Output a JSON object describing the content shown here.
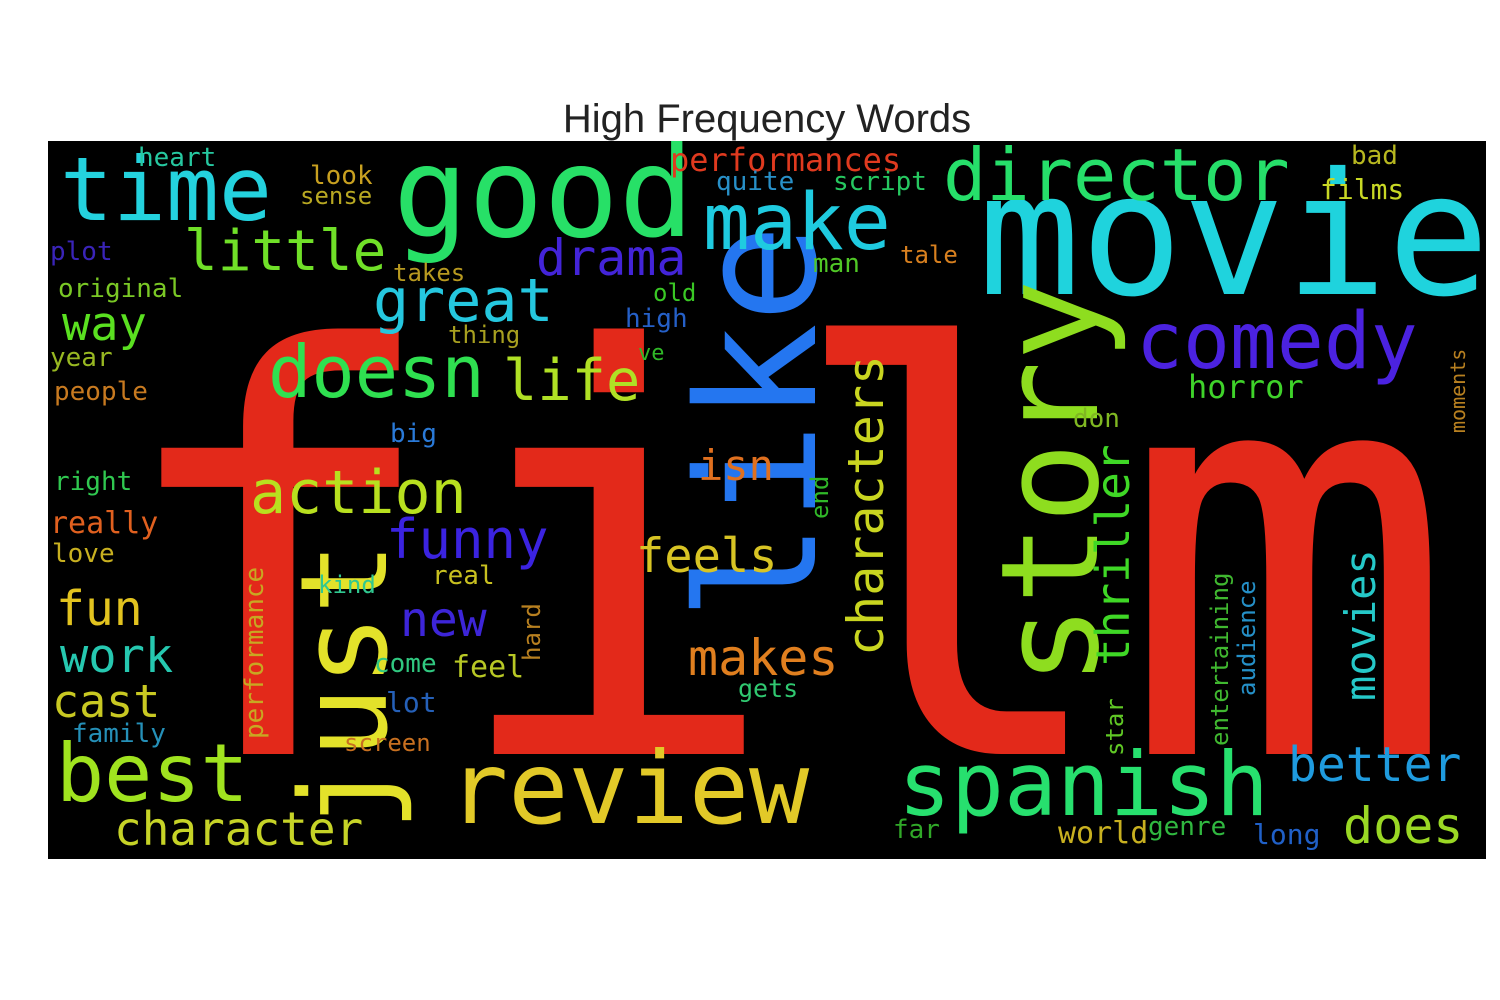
{
  "title": "High Frequency Words",
  "words": [
    {
      "text": "film",
      "color": "#e3291a"
    },
    {
      "text": "movie",
      "color": "#1fd3dd"
    },
    {
      "text": "good",
      "color": "#27e067"
    },
    {
      "text": "time",
      "color": "#24d2de"
    },
    {
      "text": "like",
      "color": "#2476f0"
    },
    {
      "text": "story",
      "color": "#8edd1f"
    },
    {
      "text": "just",
      "color": "#e3e22a"
    },
    {
      "text": "review",
      "color": "#e2c928"
    },
    {
      "text": "spanish",
      "color": "#27e06e"
    },
    {
      "text": "director",
      "color": "#26df6a"
    },
    {
      "text": "make",
      "color": "#1fcbe0"
    },
    {
      "text": "best",
      "color": "#a0e31f"
    },
    {
      "text": "comedy",
      "color": "#4b22e0"
    },
    {
      "text": "doesn",
      "color": "#2fe050"
    },
    {
      "text": "action",
      "color": "#b8e01f"
    },
    {
      "text": "great",
      "color": "#25c7df"
    },
    {
      "text": "life",
      "color": "#b0e025"
    },
    {
      "text": "little",
      "color": "#70e028"
    },
    {
      "text": "drama",
      "color": "#4324d8"
    },
    {
      "text": "characters",
      "color": "#c9d520"
    },
    {
      "text": "character",
      "color": "#c6d327"
    },
    {
      "text": "funny",
      "color": "#3b23e0"
    },
    {
      "text": "thriller",
      "color": "#3fd826"
    },
    {
      "text": "better",
      "color": "#1f9bde"
    },
    {
      "text": "does",
      "color": "#9ad824"
    },
    {
      "text": "makes",
      "color": "#e07f1f"
    },
    {
      "text": "feels",
      "color": "#d8c424"
    },
    {
      "text": "movies",
      "color": "#25c8c8"
    },
    {
      "text": "new",
      "color": "#3d25d8"
    },
    {
      "text": "fun",
      "color": "#e2c31f"
    },
    {
      "text": "work",
      "color": "#26c8b0"
    },
    {
      "text": "cast",
      "color": "#c8c822"
    },
    {
      "text": "way",
      "color": "#5ae020"
    },
    {
      "text": "isn",
      "color": "#e0701f"
    },
    {
      "text": "performances",
      "color": "#e03a1f"
    },
    {
      "text": "horror",
      "color": "#3fd32a"
    },
    {
      "text": "heart",
      "color": "#26c8a0"
    },
    {
      "text": "look",
      "color": "#c8a020"
    },
    {
      "text": "sense",
      "color": "#b8a822"
    },
    {
      "text": "quite",
      "color": "#2890c8"
    },
    {
      "text": "script",
      "color": "#26c860"
    },
    {
      "text": "films",
      "color": "#c8d825"
    },
    {
      "text": "bad",
      "color": "#b8b820"
    },
    {
      "text": "plot",
      "color": "#3a24b8"
    },
    {
      "text": "original",
      "color": "#7ac825"
    },
    {
      "text": "takes",
      "color": "#b89a20"
    },
    {
      "text": "old",
      "color": "#3ac825"
    },
    {
      "text": "man",
      "color": "#50c826"
    },
    {
      "text": "tale",
      "color": "#d8801f"
    },
    {
      "text": "thing",
      "color": "#a8a020"
    },
    {
      "text": "high",
      "color": "#2560c8"
    },
    {
      "text": "year",
      "color": "#98b822"
    },
    {
      "text": "ve",
      "color": "#30b828"
    },
    {
      "text": "people",
      "color": "#c87a20"
    },
    {
      "text": "big",
      "color": "#2a7ad8"
    },
    {
      "text": "don",
      "color": "#80b822"
    },
    {
      "text": "right",
      "color": "#30c850"
    },
    {
      "text": "really",
      "color": "#e0601f"
    },
    {
      "text": "love",
      "color": "#c8b020"
    },
    {
      "text": "kind",
      "color": "#30c890"
    },
    {
      "text": "real",
      "color": "#c8c020"
    },
    {
      "text": "performance",
      "color": "#c8a822"
    },
    {
      "text": "hard",
      "color": "#b88020"
    },
    {
      "text": "come",
      "color": "#30c880"
    },
    {
      "text": "feel",
      "color": "#b8c825"
    },
    {
      "text": "lot",
      "color": "#2560b8"
    },
    {
      "text": "gets",
      "color": "#30c870"
    },
    {
      "text": "family",
      "color": "#2590b8"
    },
    {
      "text": "screen",
      "color": "#c87020"
    },
    {
      "text": "end",
      "color": "#30b828"
    },
    {
      "text": "star",
      "color": "#60c825"
    },
    {
      "text": "entertaining",
      "color": "#40b830"
    },
    {
      "text": "audience",
      "color": "#2590c8"
    },
    {
      "text": "world",
      "color": "#c8b020"
    },
    {
      "text": "genre",
      "color": "#30b840"
    },
    {
      "text": "long",
      "color": "#2060c8"
    },
    {
      "text": "far",
      "color": "#30a828"
    },
    {
      "text": "moments",
      "color": "#b88020"
    }
  ]
}
